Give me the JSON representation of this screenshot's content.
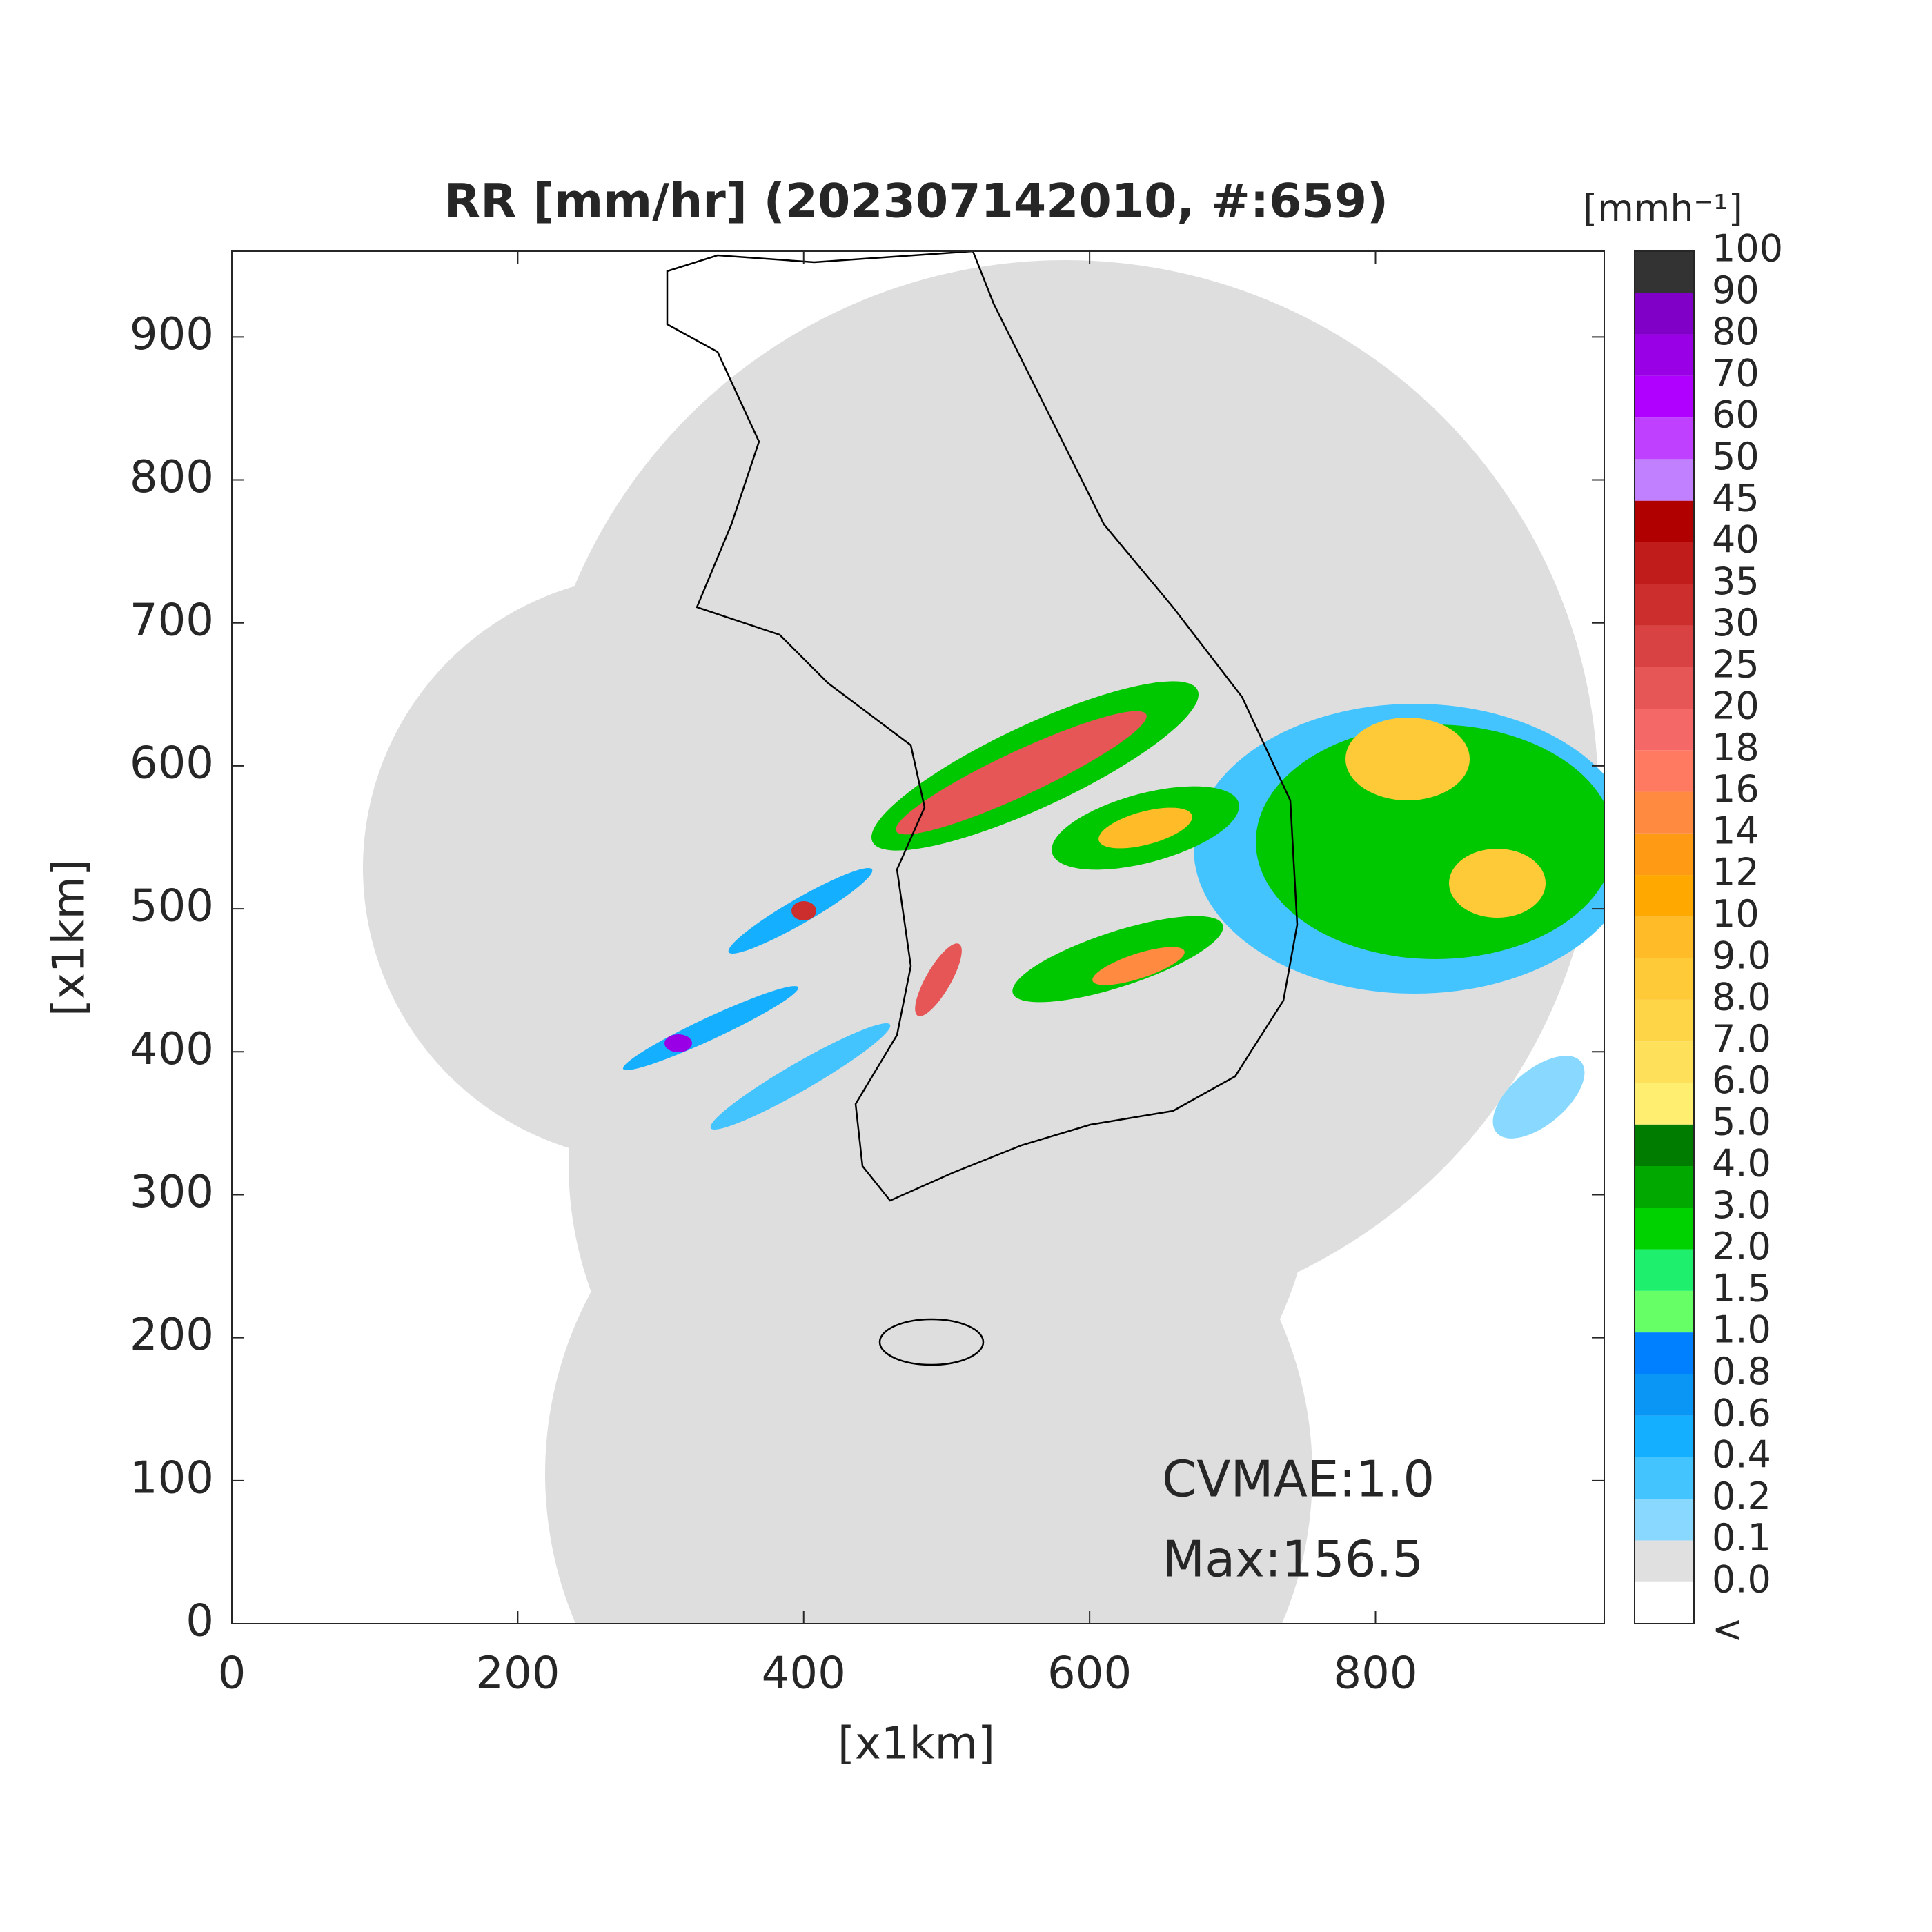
{
  "chart_data": {
    "type": "map",
    "title": "RR [mm/hr] (202307142010, #:659)",
    "xlabel": "[x1km]",
    "ylabel": "[x1km]",
    "xlim": [
      0,
      960
    ],
    "ylim": [
      0,
      960
    ],
    "xticks": [
      0,
      200,
      400,
      600,
      800
    ],
    "yticks": [
      0,
      100,
      200,
      300,
      400,
      500,
      600,
      700,
      800,
      900
    ],
    "annotations": [
      "CVMAE:1.0",
      "Max:156.5"
    ],
    "colorbar": {
      "title": "[mmh⁻¹]",
      "labels": [
        "<",
        "0.0",
        "0.1",
        "0.2",
        "0.4",
        "0.6",
        "0.8",
        "1.0",
        "1.5",
        "2.0",
        "3.0",
        "4.0",
        "5.0",
        "6.0",
        "7.0",
        "8.0",
        "9.0",
        "10",
        "12",
        "14",
        "16",
        "18",
        "20",
        "25",
        "30",
        "35",
        "40",
        "45",
        "50",
        "60",
        "70",
        "80",
        "90",
        "100"
      ],
      "colors": [
        "#ffffff",
        "#e0e0e0",
        "#88d8ff",
        "#44c4ff",
        "#14b0ff",
        "#0a96f5",
        "#0080ff",
        "#66ff66",
        "#1ef06e",
        "#00d200",
        "#00a800",
        "#007d00",
        "#ffee70",
        "#ffe05a",
        "#ffd548",
        "#ffca38",
        "#ffbc28",
        "#ffa800",
        "#ff9a14",
        "#ff8a40",
        "#ff7a60",
        "#f56868",
        "#e65656",
        "#d84242",
        "#cc2e2e",
        "#c01c1c",
        "#b00000",
        "#c080ff",
        "#c040ff",
        "#b000ff",
        "#9a00e6",
        "#8000c8",
        "#333333"
      ]
    }
  }
}
